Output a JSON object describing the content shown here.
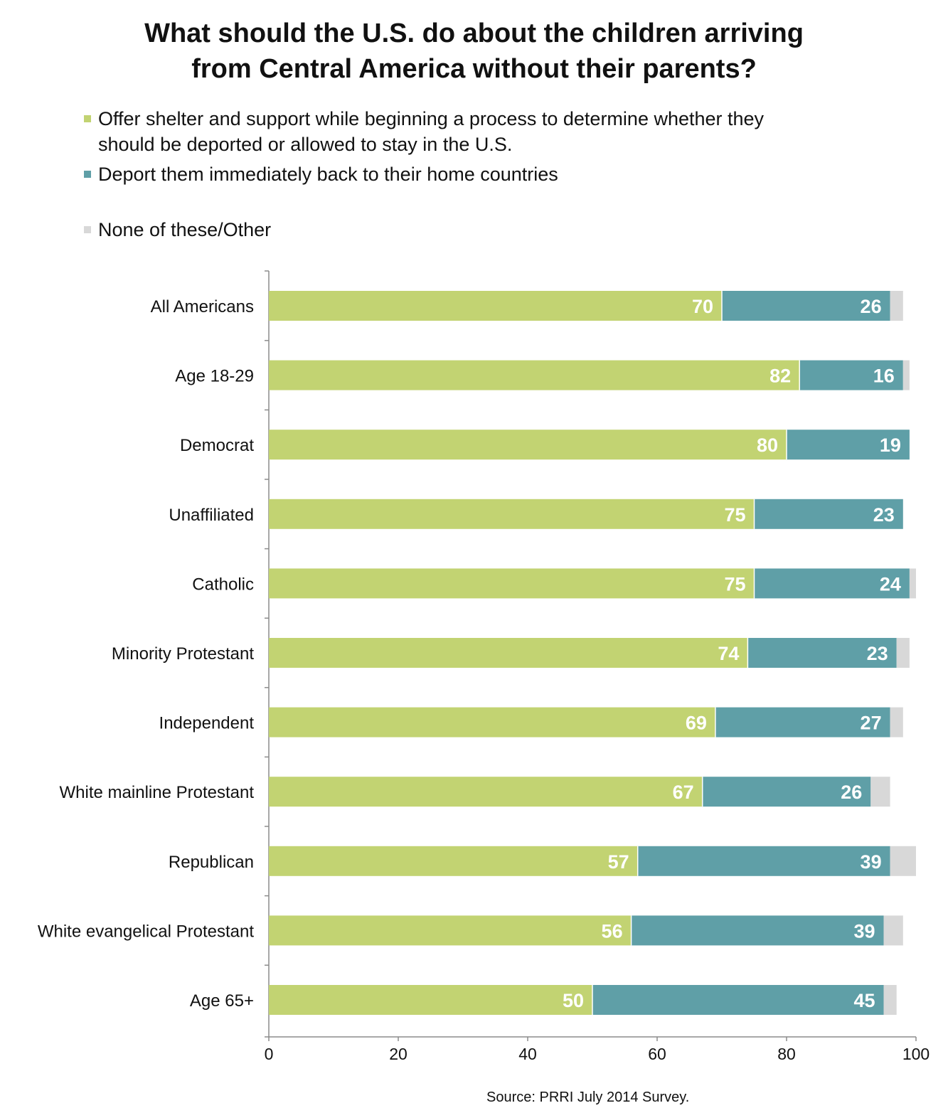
{
  "title": {
    "line1": "What should the U.S. do about the children arriving",
    "line2": "from Central America without their parents?"
  },
  "legend": [
    {
      "lines": [
        "Offer shelter and support while beginning a process to determine whether they",
        "should be deported or allowed to stay in the U.S."
      ],
      "color": "#c2d372"
    },
    {
      "lines": [
        "Deport them immediately back to their home countries"
      ],
      "color": "#5f9fa7"
    },
    {
      "lines": [
        "None of these/Other"
      ],
      "color": "#d8d8d8"
    }
  ],
  "source": "Source: PRRI July 2014 Survey.",
  "chart_data": {
    "type": "bar",
    "orientation": "horizontal",
    "stacked": true,
    "categories": [
      "All Americans",
      "Age 18-29",
      "Democrat",
      "Unaffiliated",
      "Catholic",
      "Minority Protestant",
      "Independent",
      "White mainline Protestant",
      "Republican",
      "White evangelical Protestant",
      "Age 65+"
    ],
    "series": [
      {
        "name": "Offer shelter and support while beginning a process to determine whether they should be deported or allowed to stay in the U.S.",
        "color": "#c2d372",
        "values": [
          70,
          82,
          80,
          75,
          75,
          74,
          69,
          67,
          57,
          56,
          50
        ]
      },
      {
        "name": "Deport them immediately back to their home countries",
        "color": "#5f9fa7",
        "values": [
          26,
          16,
          19,
          23,
          24,
          23,
          27,
          26,
          39,
          39,
          45
        ]
      },
      {
        "name": "None of these/Other",
        "color": "#d8d8d8",
        "values": [
          2,
          1,
          0,
          0,
          1,
          2,
          2,
          3,
          4,
          3,
          2
        ]
      }
    ],
    "xlim": [
      0,
      100
    ],
    "xticks": [
      "0",
      "20",
      "40",
      "60",
      "80",
      "100"
    ],
    "grid": false
  }
}
